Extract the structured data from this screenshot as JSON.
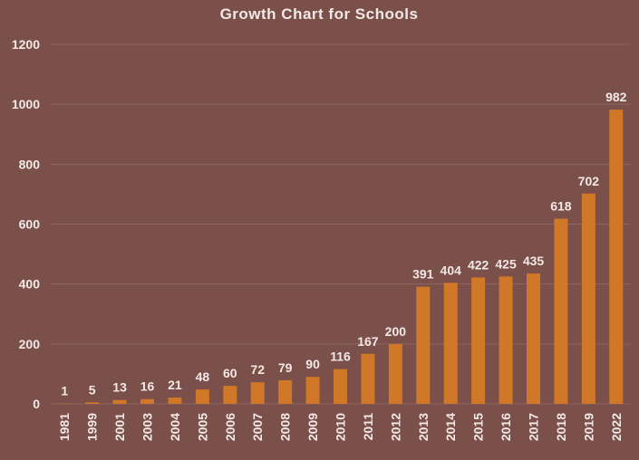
{
  "chart_data": {
    "type": "bar",
    "title": "Growth Chart for Schools",
    "xlabel": "",
    "ylabel": "",
    "categories": [
      "1981",
      "1999",
      "2001",
      "2003",
      "2004",
      "2005",
      "2006",
      "2007",
      "2008",
      "2009",
      "2010",
      "2011",
      "2012",
      "2013",
      "2014",
      "2015",
      "2016",
      "2017",
      "2018",
      "2019",
      "2022"
    ],
    "values": [
      1,
      5,
      13,
      16,
      21,
      48,
      60,
      72,
      79,
      90,
      116,
      167,
      200,
      391,
      404,
      422,
      425,
      435,
      618,
      702,
      982
    ],
    "ylim": [
      0,
      1200
    ],
    "yticks": [
      0,
      200,
      400,
      600,
      800,
      1000,
      1200
    ],
    "grid": true,
    "legend": "none",
    "colors": {
      "background": "#7b4f4a",
      "bar": "#d07828",
      "gridline": "#8f6661",
      "text": "#f2e8e6"
    }
  }
}
